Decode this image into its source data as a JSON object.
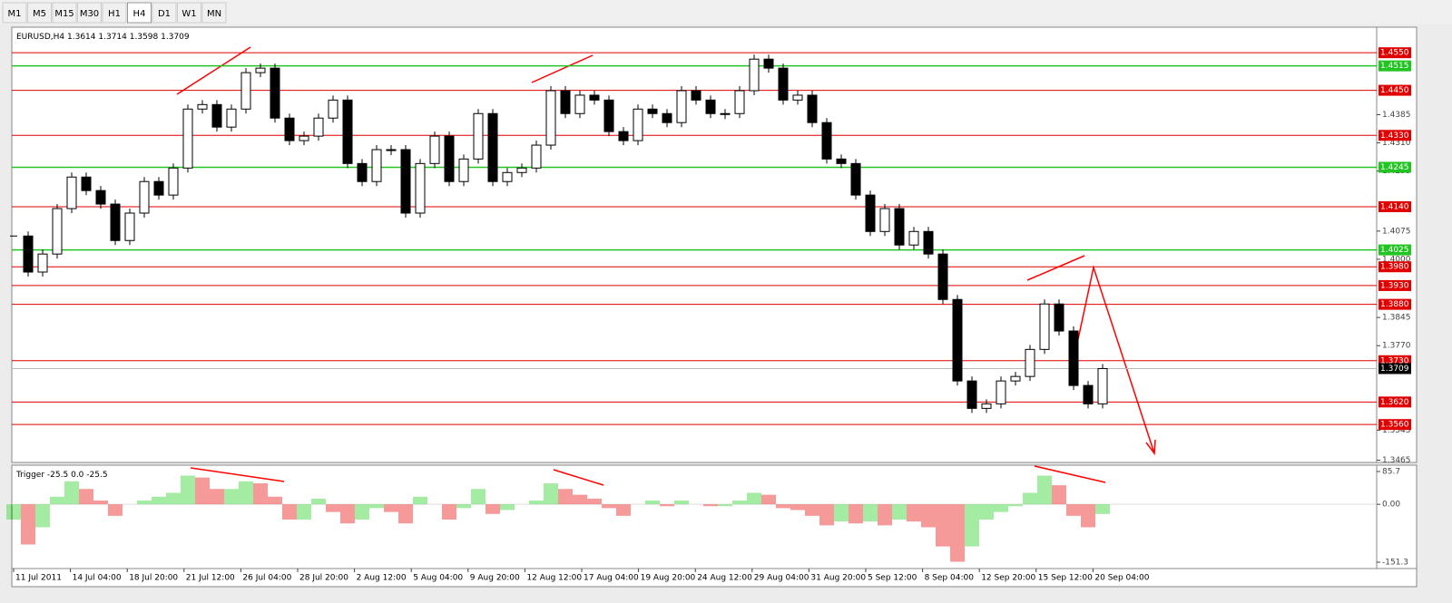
{
  "toolbar": {
    "buttons": [
      "M1",
      "M5",
      "M15",
      "M30",
      "H1",
      "H4",
      "D1",
      "W1",
      "MN"
    ],
    "active": 5
  },
  "chart": {
    "symbol": "EURUSD,H4",
    "ohlc": [
      "1.3614",
      "1.3714",
      "1.3598",
      "1.3709"
    ],
    "ylim": [
      1.3459,
      1.4618
    ],
    "yticks": [
      {
        "value": 1.4385,
        "label": "1.4385"
      },
      {
        "value": 1.431,
        "label": "1.4310"
      },
      {
        "value": 1.4235,
        "label": "1.4235"
      },
      {
        "value": 1.4075,
        "label": "1.4075"
      },
      {
        "value": 1.4,
        "label": "1.4000"
      },
      {
        "value": 1.3845,
        "label": "1.3845"
      },
      {
        "value": 1.377,
        "label": "1.3770"
      },
      {
        "value": 1.3545,
        "label": "1.3545"
      },
      {
        "value": 1.3465,
        "label": "1.3465"
      }
    ],
    "levels": [
      {
        "value": 1.455,
        "label": "1.4550",
        "color": "#e00000"
      },
      {
        "value": 1.4515,
        "label": "1.4515",
        "color": "#22c422"
      },
      {
        "value": 1.445,
        "label": "1.4450",
        "color": "#e00000"
      },
      {
        "value": 1.433,
        "label": "1.4330",
        "color": "#e00000"
      },
      {
        "value": 1.4245,
        "label": "1.4245",
        "color": "#22c422"
      },
      {
        "value": 1.414,
        "label": "1.4140",
        "color": "#e00000"
      },
      {
        "value": 1.4025,
        "label": "1.4025",
        "color": "#22c422"
      },
      {
        "value": 1.398,
        "label": "1.3980",
        "color": "#e00000"
      },
      {
        "value": 1.393,
        "label": "1.3930",
        "color": "#e00000"
      },
      {
        "value": 1.388,
        "label": "1.3880",
        "color": "#e00000"
      },
      {
        "value": 1.373,
        "label": "1.3730",
        "color": "#e00000"
      },
      {
        "value": 1.362,
        "label": "1.3620",
        "color": "#e00000"
      },
      {
        "value": 1.356,
        "label": "1.3560",
        "color": "#e00000"
      }
    ],
    "current": {
      "value": 1.3709,
      "label": "1.3709"
    },
    "close": [
      1.4062,
      1.3966,
      1.4014,
      1.4135,
      1.4219,
      1.4183,
      1.4147,
      1.405,
      1.4123,
      1.4207,
      1.4171,
      1.4243,
      1.44,
      1.4412,
      1.4352,
      1.44,
      1.4497,
      1.4509,
      1.4376,
      1.4316,
      1.4328,
      1.4376,
      1.4424,
      1.4255,
      1.4207,
      1.4292,
      1.4292,
      1.4123,
      1.4255,
      1.4328,
      1.4207,
      1.4267,
      1.4388,
      1.4207,
      1.4231,
      1.4243,
      1.4304,
      1.4449,
      1.4388,
      1.4437,
      1.4424,
      1.434,
      1.4316,
      1.44,
      1.4388,
      1.4364,
      1.4449,
      1.4424,
      1.4388,
      1.4388,
      1.4449,
      1.4533,
      1.4509,
      1.4424,
      1.4437,
      1.4364,
      1.4267,
      1.4255,
      1.4171,
      1.4074,
      1.4135,
      1.4038,
      1.4074,
      1.4014,
      1.3893,
      1.3676,
      1.3603,
      1.3615,
      1.3676,
      1.3688,
      1.376,
      1.3881,
      1.3809,
      1.3664,
      1.3615,
      1.3709
    ],
    "time_labels": [
      "11 Jul 2011",
      "14 Jul 04:00",
      "18 Jul 20:00",
      "21 Jul 12:00",
      "26 Jul 04:00",
      "28 Jul 20:00",
      "2 Aug 12:00",
      "5 Aug 04:00",
      "9 Aug 20:00",
      "12 Aug 12:00",
      "17 Aug 04:00",
      "19 Aug 20:00",
      "24 Aug 12:00",
      "29 Aug 04:00",
      "31 Aug 20:00",
      "5 Sep 12:00",
      "8 Sep 04:00",
      "12 Sep 20:00",
      "15 Sep 12:00",
      "20 Sep 04:00"
    ]
  },
  "indicator": {
    "name": "Trigger",
    "readout": [
      "-25.5",
      "0.0",
      "-25.5"
    ],
    "ylim": [
      -167.9,
      102.3
    ],
    "yticks": [
      {
        "value": 85.7,
        "label": "85.7"
      },
      {
        "value": 0,
        "label": "0.00"
      },
      {
        "value": -151.3,
        "label": "-151.3"
      }
    ],
    "values": [
      -40,
      -105,
      -60,
      20,
      60,
      40,
      10,
      -30,
      0,
      10,
      20,
      30,
      75,
      70,
      40,
      40,
      60,
      55,
      20,
      -40,
      -40,
      15,
      -20,
      -50,
      -40,
      -10,
      -20,
      -50,
      20,
      0,
      -40,
      -10,
      40,
      -25,
      -15,
      0,
      10,
      55,
      40,
      25,
      15,
      -10,
      -30,
      0,
      10,
      -5,
      10,
      0,
      -5,
      -5,
      10,
      30,
      25,
      -10,
      -15,
      -30,
      -55,
      -45,
      -50,
      -45,
      -55,
      -40,
      -45,
      -60,
      -110,
      -150,
      -110,
      -40,
      -20,
      -5,
      30,
      75,
      50,
      -30,
      -60,
      -25.5
    ]
  }
}
